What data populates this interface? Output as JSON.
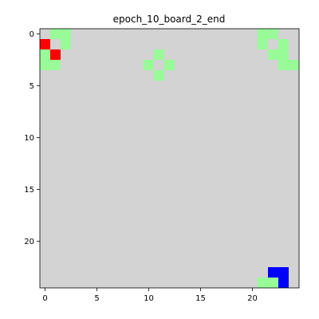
{
  "figure": {
    "title": "epoch_10_board_2_end"
  },
  "board": {
    "rows": 25,
    "cols": 25,
    "colors": {
      "empty": "#d3d3d3",
      "green": "#98fb98",
      "red": "#ff0000",
      "blue": "#0000ff"
    },
    "cells": [
      {
        "row": 0,
        "col": 1,
        "state": "green"
      },
      {
        "row": 0,
        "col": 2,
        "state": "green"
      },
      {
        "row": 1,
        "col": 2,
        "state": "green"
      },
      {
        "row": 1,
        "col": 0,
        "state": "red"
      },
      {
        "row": 2,
        "col": 1,
        "state": "red"
      },
      {
        "row": 2,
        "col": 0,
        "state": "green"
      },
      {
        "row": 3,
        "col": 0,
        "state": "green"
      },
      {
        "row": 3,
        "col": 1,
        "state": "green"
      },
      {
        "row": 2,
        "col": 11,
        "state": "green"
      },
      {
        "row": 3,
        "col": 10,
        "state": "green"
      },
      {
        "row": 3,
        "col": 12,
        "state": "green"
      },
      {
        "row": 4,
        "col": 11,
        "state": "green"
      },
      {
        "row": 0,
        "col": 21,
        "state": "green"
      },
      {
        "row": 0,
        "col": 22,
        "state": "green"
      },
      {
        "row": 1,
        "col": 21,
        "state": "green"
      },
      {
        "row": 1,
        "col": 23,
        "state": "green"
      },
      {
        "row": 2,
        "col": 22,
        "state": "green"
      },
      {
        "row": 2,
        "col": 23,
        "state": "green"
      },
      {
        "row": 3,
        "col": 23,
        "state": "green"
      },
      {
        "row": 3,
        "col": 24,
        "state": "green"
      },
      {
        "row": 23,
        "col": 22,
        "state": "blue"
      },
      {
        "row": 23,
        "col": 23,
        "state": "blue"
      },
      {
        "row": 24,
        "col": 23,
        "state": "blue"
      },
      {
        "row": 24,
        "col": 21,
        "state": "green"
      },
      {
        "row": 24,
        "col": 22,
        "state": "green"
      }
    ]
  },
  "axes": {
    "x_ticks": [
      "0",
      "5",
      "10",
      "15",
      "20"
    ],
    "y_ticks": [
      "0",
      "5",
      "10",
      "15",
      "20"
    ]
  }
}
